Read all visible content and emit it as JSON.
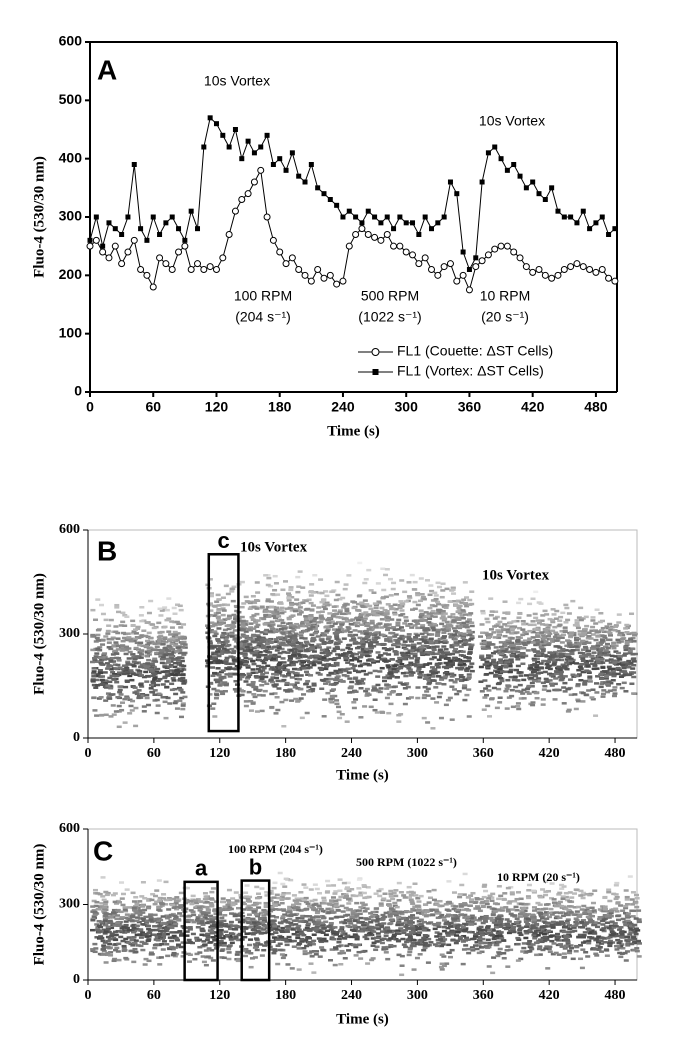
{
  "chart_data": [
    {
      "type": "line",
      "panel": "A",
      "xlabel": "Time (s)",
      "ylabel": "Fluo-4 (530/30 nm)",
      "annotations": [
        "10s Vortex",
        "10s Vortex",
        "100 RPM",
        "(204 s⁻¹)",
        "500 RPM",
        "(1022 s⁻¹)",
        "10 RPM",
        "(20 s⁻¹)"
      ],
      "xlim": [
        0,
        500
      ],
      "ylim": [
        0,
        600
      ],
      "xticks": [
        0,
        60,
        120,
        180,
        240,
        300,
        360,
        420,
        480
      ],
      "yticks": [
        0,
        100,
        200,
        300,
        400,
        500,
        600
      ],
      "x": [
        0,
        6,
        12,
        18,
        24,
        30,
        36,
        42,
        48,
        54,
        60,
        66,
        72,
        78,
        84,
        90,
        96,
        102,
        108,
        114,
        120,
        126,
        132,
        138,
        144,
        150,
        156,
        162,
        168,
        174,
        180,
        186,
        192,
        198,
        204,
        210,
        216,
        222,
        228,
        234,
        240,
        246,
        252,
        258,
        264,
        270,
        276,
        282,
        288,
        294,
        300,
        306,
        312,
        318,
        324,
        330,
        336,
        342,
        348,
        354,
        360,
        366,
        372,
        378,
        384,
        390,
        396,
        402,
        408,
        414,
        420,
        426,
        432,
        438,
        444,
        450,
        456,
        462,
        468,
        474,
        480,
        486,
        492,
        498
      ],
      "series": [
        {
          "name": "FL1 (Couette: ΔST Cells)",
          "color": "#000000",
          "marker": "circle",
          "values": [
            250,
            260,
            240,
            230,
            250,
            220,
            240,
            260,
            210,
            200,
            180,
            230,
            220,
            210,
            240,
            250,
            210,
            220,
            210,
            215,
            210,
            230,
            270,
            310,
            330,
            340,
            360,
            380,
            300,
            260,
            240,
            220,
            230,
            210,
            200,
            190,
            210,
            195,
            200,
            185,
            190,
            250,
            270,
            280,
            270,
            265,
            260,
            270,
            250,
            250,
            240,
            235,
            220,
            230,
            210,
            200,
            215,
            220,
            190,
            200,
            175,
            215,
            225,
            235,
            245,
            250,
            250,
            240,
            230,
            215,
            205,
            210,
            200,
            195,
            200,
            210,
            215,
            220,
            215,
            210,
            205,
            210,
            195,
            190
          ]
        },
        {
          "name": "FL1 (Vortex: ΔST Cells)",
          "color": "#000000",
          "marker": "square",
          "values": [
            260,
            300,
            250,
            290,
            280,
            270,
            300,
            390,
            280,
            260,
            300,
            270,
            290,
            300,
            280,
            260,
            310,
            280,
            420,
            470,
            460,
            440,
            420,
            450,
            400,
            430,
            410,
            420,
            440,
            390,
            400,
            380,
            410,
            370,
            360,
            390,
            350,
            340,
            330,
            320,
            300,
            310,
            300,
            290,
            310,
            300,
            290,
            300,
            280,
            300,
            290,
            290,
            270,
            300,
            280,
            290,
            300,
            360,
            340,
            240,
            210,
            230,
            360,
            410,
            420,
            400,
            380,
            390,
            370,
            350,
            360,
            340,
            330,
            350,
            310,
            300,
            300,
            290,
            310,
            280,
            290,
            300,
            270,
            280
          ]
        }
      ]
    },
    {
      "type": "density",
      "panel": "B",
      "xlabel": "Time (s)",
      "ylabel": "Fluo-4 (530/30 nm)",
      "annotations": [
        "10s Vortex",
        "10s Vortex"
      ],
      "xlim": [
        0,
        500
      ],
      "ylim": [
        0,
        600
      ],
      "xticks": [
        0,
        60,
        120,
        180,
        240,
        300,
        360,
        420,
        480
      ],
      "yticks": [
        0,
        300,
        600
      ],
      "regions": [
        {
          "label": "c",
          "x": [
            110,
            137
          ],
          "y": [
            20,
            530
          ]
        }
      ]
    },
    {
      "type": "density",
      "panel": "C",
      "xlabel": "Time (s)",
      "ylabel": "Fluo-4 (530/30 nm)",
      "annotations": [
        "100 RPM (204 s⁻¹)",
        "500 RPM (1022 s⁻¹)",
        "10 RPM (20 s⁻¹)"
      ],
      "xlim": [
        0,
        500
      ],
      "ylim": [
        0,
        600
      ],
      "xticks": [
        0,
        60,
        120,
        180,
        240,
        300,
        360,
        420,
        480
      ],
      "yticks": [
        0,
        300,
        600
      ],
      "regions": [
        {
          "label": "a",
          "x": [
            88,
            118
          ],
          "y": [
            0,
            390
          ]
        },
        {
          "label": "b",
          "x": [
            140,
            165
          ],
          "y": [
            0,
            395
          ]
        }
      ]
    }
  ]
}
